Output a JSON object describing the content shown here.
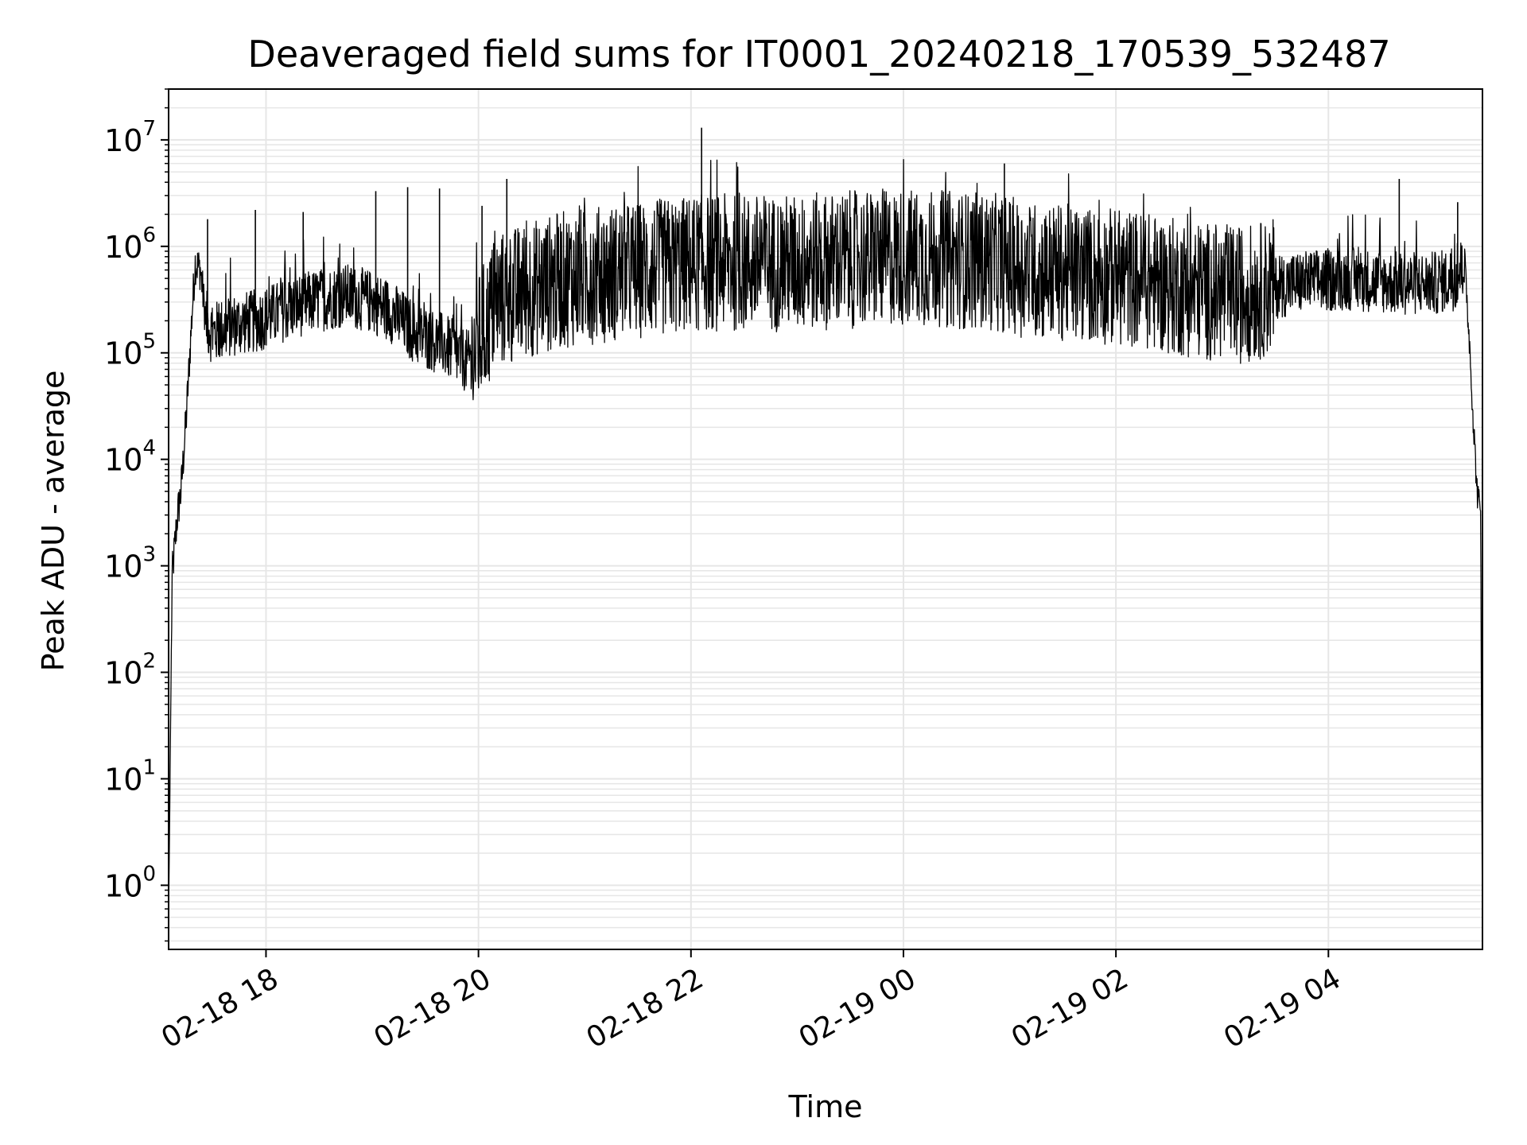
{
  "chart_data": {
    "type": "line",
    "title": "Deaveraged field sums for IT0001_20240218_170539_532487",
    "xlabel": "Time",
    "ylabel": "Peak ADU - average",
    "yscale": "log",
    "xlim": [
      "2024-02-18 17:05",
      "2024-02-19 05:27"
    ],
    "ylim": [
      0.25,
      30000000
    ],
    "grid": true,
    "line_color": "#000000",
    "grid_color": "#e6e6e6",
    "x_tick_labels": [
      "02-18 18",
      "02-18 20",
      "02-18 22",
      "02-19 00",
      "02-19 02",
      "02-19 04"
    ],
    "y_tick_labels": [
      {
        "base": "10",
        "exp": "0"
      },
      {
        "base": "10",
        "exp": "1"
      },
      {
        "base": "10",
        "exp": "2"
      },
      {
        "base": "10",
        "exp": "3"
      },
      {
        "base": "10",
        "exp": "4"
      },
      {
        "base": "10",
        "exp": "5"
      },
      {
        "base": "10",
        "exp": "6"
      },
      {
        "base": "10",
        "exp": "7"
      }
    ],
    "series": [
      {
        "x": [
          "2024-02-18 17:05",
          "2024-02-18 17:07",
          "2024-02-18 17:10",
          "2024-02-18 17:12",
          "2024-02-18 17:15",
          "2024-02-18 17:18",
          "2024-02-18 17:20",
          "2024-02-18 17:23",
          "2024-02-18 17:26",
          "2024-02-18 17:30",
          "2024-02-18 17:40",
          "2024-02-18 17:55",
          "2024-02-18 18:10",
          "2024-02-18 18:25",
          "2024-02-18 18:45",
          "2024-02-18 19:00",
          "2024-02-18 19:10",
          "2024-02-18 19:25",
          "2024-02-18 19:40",
          "2024-02-18 19:55",
          "2024-02-18 20:10",
          "2024-02-18 20:30",
          "2024-02-18 20:50",
          "2024-02-18 21:10",
          "2024-02-18 21:30",
          "2024-02-18 21:50",
          "2024-02-18 22:05",
          "2024-02-18 22:30",
          "2024-02-18 23:00",
          "2024-02-18 23:30",
          "2024-02-19 00:00",
          "2024-02-19 00:30",
          "2024-02-19 00:55",
          "2024-02-19 01:10",
          "2024-02-19 01:40",
          "2024-02-19 02:10",
          "2024-02-19 02:40",
          "2024-02-19 03:10",
          "2024-02-19 03:40",
          "2024-02-19 04:10",
          "2024-02-19 04:40",
          "2024-02-19 05:00",
          "2024-02-19 05:12",
          "2024-02-19 05:17",
          "2024-02-19 05:20",
          "2024-02-19 05:22",
          "2024-02-19 05:24",
          "2024-02-19 05:26",
          "2024-02-19 05:27"
        ],
        "y": [
          0.5,
          800,
          3000,
          5000,
          25000,
          200000,
          700000,
          600000,
          200000,
          150000,
          180000,
          200000,
          250000,
          300000,
          350000,
          300000,
          250000,
          150000,
          120000,
          80000,
          300000,
          400000,
          500000,
          550000,
          600000,
          650000,
          700000,
          700000,
          700000,
          750000,
          800000,
          750000,
          700000,
          600000,
          550000,
          500000,
          400000,
          350000,
          450000,
          500000,
          450000,
          450000,
          500000,
          700000,
          100000,
          20000,
          5000,
          3000,
          0.3
        ],
        "spikes": [
          {
            "x": "2024-02-18 17:27",
            "y": 1800000
          },
          {
            "x": "2024-02-18 17:54",
            "y": 2200000
          },
          {
            "x": "2024-02-18 18:21",
            "y": 2100000
          },
          {
            "x": "2024-02-18 19:02",
            "y": 3300000
          },
          {
            "x": "2024-02-18 19:20",
            "y": 3600000
          },
          {
            "x": "2024-02-18 19:38",
            "y": 3500000
          },
          {
            "x": "2024-02-18 20:02",
            "y": 2400000
          },
          {
            "x": "2024-02-18 20:16",
            "y": 4300000
          },
          {
            "x": "2024-02-18 22:06",
            "y": 13000000
          },
          {
            "x": "2024-02-19 00:57",
            "y": 6000000
          },
          {
            "x": "2024-02-19 04:40",
            "y": 4300000
          },
          {
            "x": "2024-02-19 05:13",
            "y": 2600000
          }
        ]
      }
    ]
  }
}
